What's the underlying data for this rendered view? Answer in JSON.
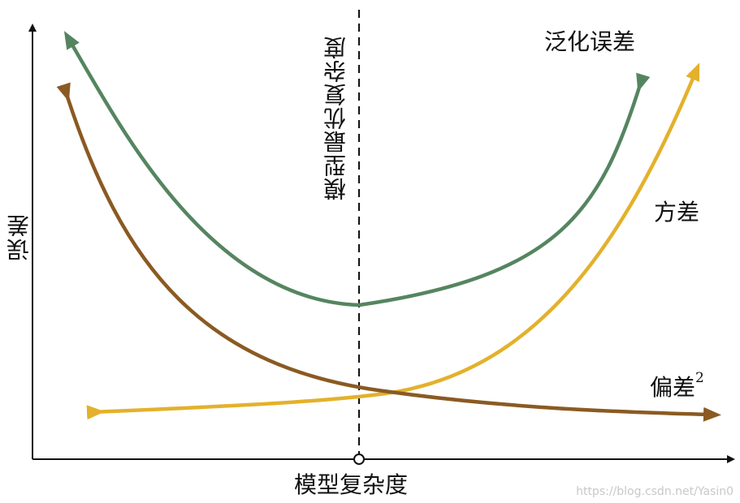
{
  "axes": {
    "x_label": "模型复杂度",
    "y_label": "误差"
  },
  "optimal_line_label": "模型最优复杂度",
  "curves": {
    "generalization": {
      "label": "泛化误差",
      "color": "#558560"
    },
    "variance": {
      "label": "方差",
      "color": "#e3b12b"
    },
    "bias": {
      "label": "偏差",
      "superscript": "2",
      "color": "#8a5a22"
    }
  },
  "watermark": "https://blog.csdn.net/Yasin0"
}
